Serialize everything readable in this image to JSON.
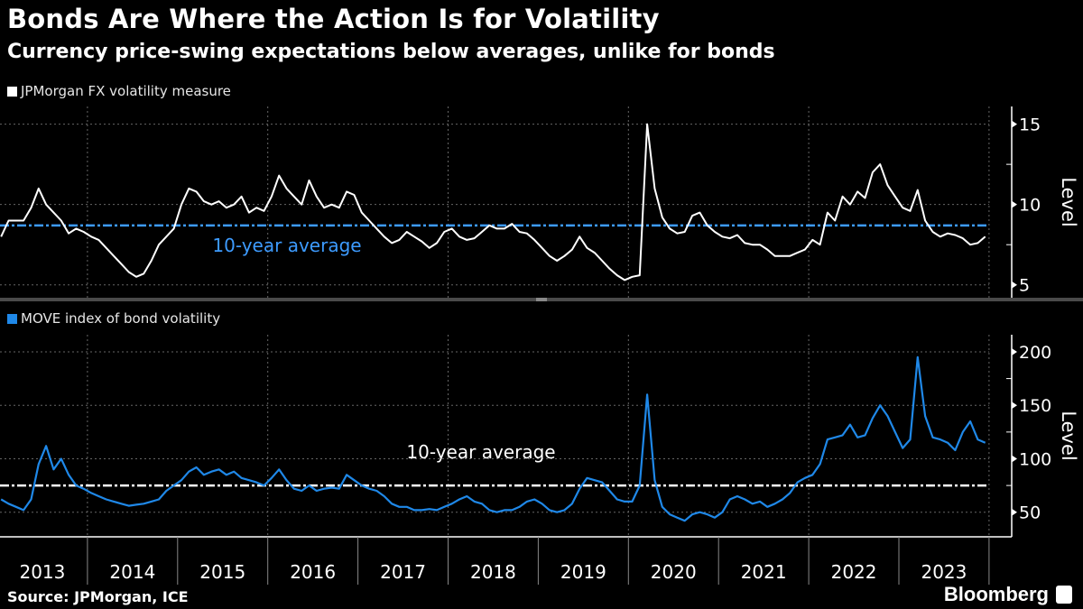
{
  "header": {
    "title": "Bonds Are Where the Action Is for Volatility",
    "subtitle": "Currency price-swing expectations below averages, unlike for bonds"
  },
  "footer": {
    "source": "Source: JPMorgan, ICE",
    "logo": "Bloomberg"
  },
  "colors": {
    "fx_line": "#ffffff",
    "fx_avg": "#3d9bff",
    "move_line": "#1f88e8",
    "move_avg": "#ffffff",
    "background": "#000000"
  },
  "chart_data": [
    {
      "type": "line",
      "legend": "JPMorgan FX volatility measure",
      "ylabel": "Level",
      "yticks": [
        5,
        10,
        15
      ],
      "ylim": [
        4.2,
        16.1
      ],
      "grid": true,
      "frequency": "monthly",
      "start": "2013-01",
      "average": {
        "label": "10-year average",
        "value": 8.7
      },
      "series": [
        {
          "values": [
            8.0,
            9.0,
            9.0,
            9.0,
            9.8,
            11.0,
            10.0,
            9.5,
            9.0,
            8.2,
            8.5,
            8.3,
            8.0,
            7.8,
            7.3,
            6.8,
            6.3,
            5.8,
            5.5,
            5.7,
            6.5,
            7.5,
            8.0,
            8.5,
            10.0,
            11.0,
            10.8,
            10.2,
            10.0,
            10.2,
            9.8,
            10.0,
            10.5,
            9.5,
            9.8,
            9.6,
            10.5,
            11.8,
            11.0,
            10.5,
            10.0,
            11.5,
            10.5,
            9.8,
            10.0,
            9.8,
            10.8,
            10.6,
            9.5,
            9.0,
            8.5,
            8.0,
            7.6,
            7.8,
            8.3,
            8.0,
            7.7,
            7.3,
            7.6,
            8.3,
            8.5,
            8.0,
            7.8,
            7.9,
            8.3,
            8.7,
            8.5,
            8.5,
            8.8,
            8.3,
            8.2,
            7.8,
            7.3,
            6.8,
            6.5,
            6.8,
            7.2,
            8.0,
            7.3,
            7.0,
            6.5,
            6.0,
            5.6,
            5.3,
            5.5,
            5.6,
            15.0,
            11.0,
            9.2,
            8.5,
            8.2,
            8.3,
            9.3,
            9.5,
            8.7,
            8.3,
            8.0,
            7.9,
            8.1,
            7.6,
            7.5,
            7.5,
            7.2,
            6.8,
            6.8,
            6.8,
            7.0,
            7.2,
            7.8,
            7.5,
            9.5,
            9.0,
            10.5,
            10.0,
            10.8,
            10.4,
            12.0,
            12.5,
            11.2,
            10.5,
            9.8,
            9.6,
            10.9,
            9.0,
            8.3,
            8.0,
            8.2,
            8.1,
            7.9,
            7.5,
            7.6,
            8.0
          ]
        }
      ]
    },
    {
      "type": "line",
      "legend": "MOVE index of bond volatility",
      "ylabel": "Level",
      "yticks": [
        50,
        100,
        150,
        200
      ],
      "ylim": [
        27,
        216
      ],
      "grid": true,
      "frequency": "monthly",
      "start": "2013-01",
      "average": {
        "label": "10-year average",
        "value": 75
      },
      "series": [
        {
          "values": [
            62,
            58,
            55,
            52,
            62,
            95,
            112,
            90,
            100,
            85,
            75,
            72,
            68,
            65,
            62,
            60,
            58,
            56,
            57,
            58,
            60,
            62,
            70,
            75,
            80,
            88,
            92,
            85,
            88,
            90,
            85,
            88,
            82,
            80,
            78,
            75,
            82,
            90,
            80,
            72,
            70,
            75,
            70,
            72,
            73,
            72,
            85,
            80,
            75,
            72,
            70,
            65,
            58,
            55,
            55,
            52,
            52,
            53,
            52,
            55,
            58,
            62,
            65,
            60,
            58,
            52,
            50,
            52,
            52,
            55,
            60,
            62,
            58,
            52,
            50,
            52,
            58,
            72,
            82,
            80,
            78,
            70,
            62,
            60,
            60,
            75,
            160,
            80,
            55,
            48,
            45,
            42,
            48,
            50,
            48,
            45,
            50,
            62,
            65,
            62,
            58,
            60,
            55,
            58,
            62,
            68,
            78,
            82,
            85,
            95,
            118,
            120,
            122,
            132,
            120,
            122,
            138,
            150,
            140,
            125,
            110,
            118,
            195,
            140,
            120,
            118,
            115,
            108,
            125,
            135,
            118,
            115
          ]
        }
      ]
    }
  ],
  "x_axis": {
    "labels": [
      "2013",
      "2014",
      "2015",
      "2016",
      "2017",
      "2018",
      "2019",
      "2020",
      "2021",
      "2022",
      "2023"
    ]
  }
}
